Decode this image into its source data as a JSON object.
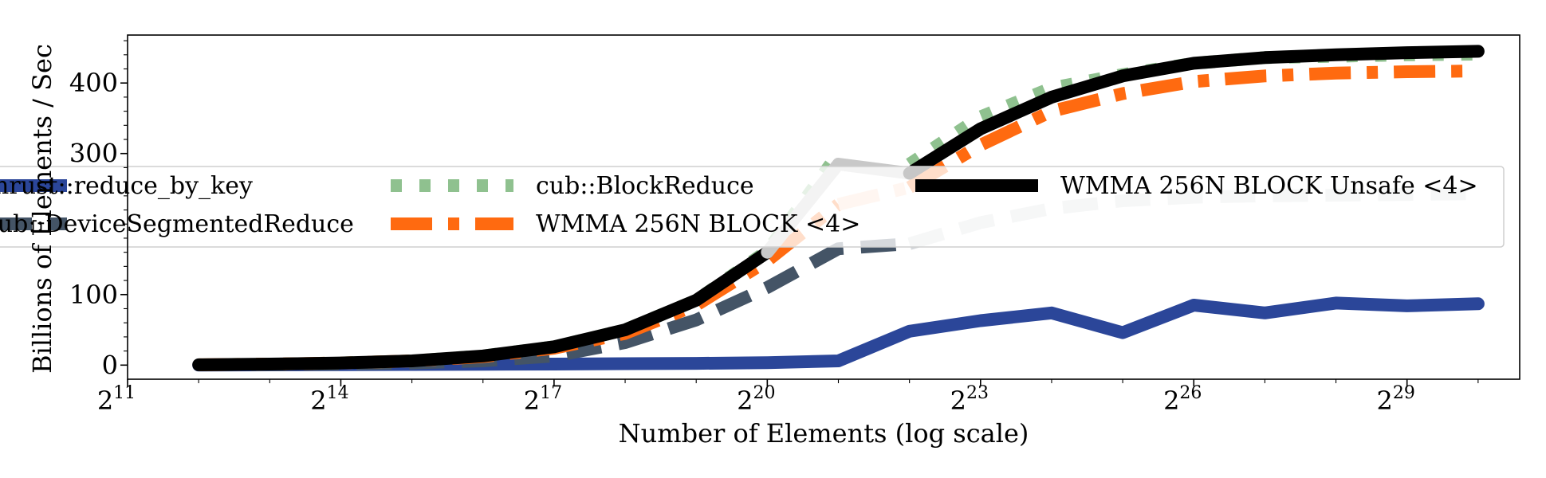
{
  "chart_data": {
    "type": "line",
    "xlabel": "Number of Elements (log scale)",
    "ylabel": "Billions of Elements / Sec",
    "x_scale": "log2",
    "xlim": [
      2048,
      1610612736
    ],
    "ylim": [
      -20,
      468
    ],
    "x_ticks": [
      {
        "base": "2",
        "exp": "11",
        "value": 2048
      },
      {
        "base": "2",
        "exp": "14",
        "value": 16384
      },
      {
        "base": "2",
        "exp": "17",
        "value": 131072
      },
      {
        "base": "2",
        "exp": "20",
        "value": 1048576
      },
      {
        "base": "2",
        "exp": "23",
        "value": 8388608
      },
      {
        "base": "2",
        "exp": "26",
        "value": 67108864
      },
      {
        "base": "2",
        "exp": "29",
        "value": 536870912
      }
    ],
    "y_ticks": [
      {
        "label": "0",
        "value": 0
      },
      {
        "label": "100",
        "value": 100
      },
      {
        "label": "300",
        "value": 300
      },
      {
        "label": "400",
        "value": 400
      }
    ],
    "grid": false,
    "legend_placement": "center",
    "x": [
      4096,
      8192,
      16384,
      32768,
      65536,
      131072,
      262144,
      524288,
      1048576,
      2097152,
      4194304,
      8388608,
      16777216,
      33554432,
      67108864,
      134217728,
      268435456,
      536870912,
      1073741824
    ],
    "series": [
      {
        "name": "thrust::reduce_by_key",
        "color": "#2b4699",
        "style": "solid",
        "opacity": 1.0,
        "values": [
          0,
          0.3,
          0.6,
          0.9,
          1.2,
          1.5,
          2.0,
          2.5,
          3.5,
          6,
          48,
          63,
          74,
          46,
          85,
          74,
          88,
          84,
          87
        ]
      },
      {
        "name": "cub::DeviceSegmentedReduce",
        "color": "#445466",
        "style": "dashed",
        "opacity": 1.0,
        "values": [
          0.3,
          0.8,
          1.5,
          3,
          6,
          13,
          32,
          64,
          110,
          165,
          172,
          0,
          0,
          0,
          0,
          0,
          0,
          0,
          0
        ]
      },
      {
        "name": "",
        "color": "#d5d8dc",
        "style": "dashed",
        "opacity": 1.0,
        "values": [
          0,
          0,
          0,
          0,
          0,
          0,
          0,
          0,
          0,
          0,
          172,
          202,
          222,
          233,
          238,
          240,
          241,
          242,
          243
        ]
      },
      {
        "name": "cub::BlockReduce",
        "color": "#8fc18f",
        "style": "dotted",
        "opacity": 1.0,
        "values": [
          0.5,
          1.5,
          3,
          6,
          13,
          26,
          50,
          92,
          162,
          300,
          0,
          0,
          0,
          0,
          0,
          0,
          0,
          0,
          0
        ]
      },
      {
        "name": "",
        "color": "#8fc18f",
        "style": "dotted",
        "opacity": 1.0,
        "values": [
          0,
          0,
          0,
          0,
          0,
          0,
          0,
          0,
          0,
          0,
          285,
          352,
          393,
          412,
          428,
          436,
          438,
          440,
          441
        ]
      },
      {
        "name": "WMMA 256N BLOCK <4>",
        "color": "#ff6a10",
        "style": "dashdot",
        "opacity": 1.0,
        "values": [
          0.5,
          1.5,
          3,
          6,
          12,
          24,
          45,
          85,
          148,
          228,
          0,
          0,
          0,
          0,
          0,
          0,
          0,
          0,
          0
        ]
      },
      {
        "name": "",
        "color": "#ffd7bf",
        "style": "dashdot",
        "opacity": 1.0,
        "values": [
          0,
          0,
          0,
          0,
          0,
          0,
          0,
          0,
          0,
          228,
          252,
          0,
          0,
          0,
          0,
          0,
          0,
          0,
          0
        ]
      },
      {
        "name": "",
        "color": "#ff6a10",
        "style": "dashdot",
        "opacity": 1.0,
        "values": [
          0,
          0,
          0,
          0,
          0,
          0,
          0,
          0,
          0,
          0,
          252,
          312,
          360,
          385,
          402,
          410,
          414,
          416,
          417
        ]
      },
      {
        "name": "WMMA 256N BLOCK Unsafe <4>",
        "color": "#000000",
        "style": "solid",
        "opacity": 1.0,
        "values": [
          0.5,
          1.5,
          3,
          6,
          13,
          26,
          50,
          92,
          160,
          0,
          0,
          0,
          0,
          0,
          0,
          0,
          0,
          0,
          0
        ]
      },
      {
        "name": "",
        "color": "#c8c8c8",
        "style": "solid",
        "opacity": 1.0,
        "values": [
          0,
          0,
          0,
          0,
          0,
          0,
          0,
          0,
          160,
          285,
          272,
          0,
          0,
          0,
          0,
          0,
          0,
          0,
          0
        ]
      },
      {
        "name": "",
        "color": "#000000",
        "style": "solid",
        "opacity": 1.0,
        "values": [
          0,
          0,
          0,
          0,
          0,
          0,
          0,
          0,
          0,
          0,
          272,
          335,
          380,
          410,
          428,
          436,
          440,
          443,
          445
        ]
      }
    ],
    "legend": [
      {
        "label": "thrust::reduce_by_key",
        "color": "#2b4699",
        "style": "solid"
      },
      {
        "label": "cub::DeviceSegmentedReduce",
        "color": "#445466",
        "style": "dashed"
      },
      {
        "label": "cub::BlockReduce",
        "color": "#8fc18f",
        "style": "dotted"
      },
      {
        "label": "WMMA 256N BLOCK <4>",
        "color": "#ff6a10",
        "style": "dashdot"
      },
      {
        "label": "WMMA 256N BLOCK Unsafe <4>",
        "color": "#000000",
        "style": "solid"
      }
    ]
  }
}
